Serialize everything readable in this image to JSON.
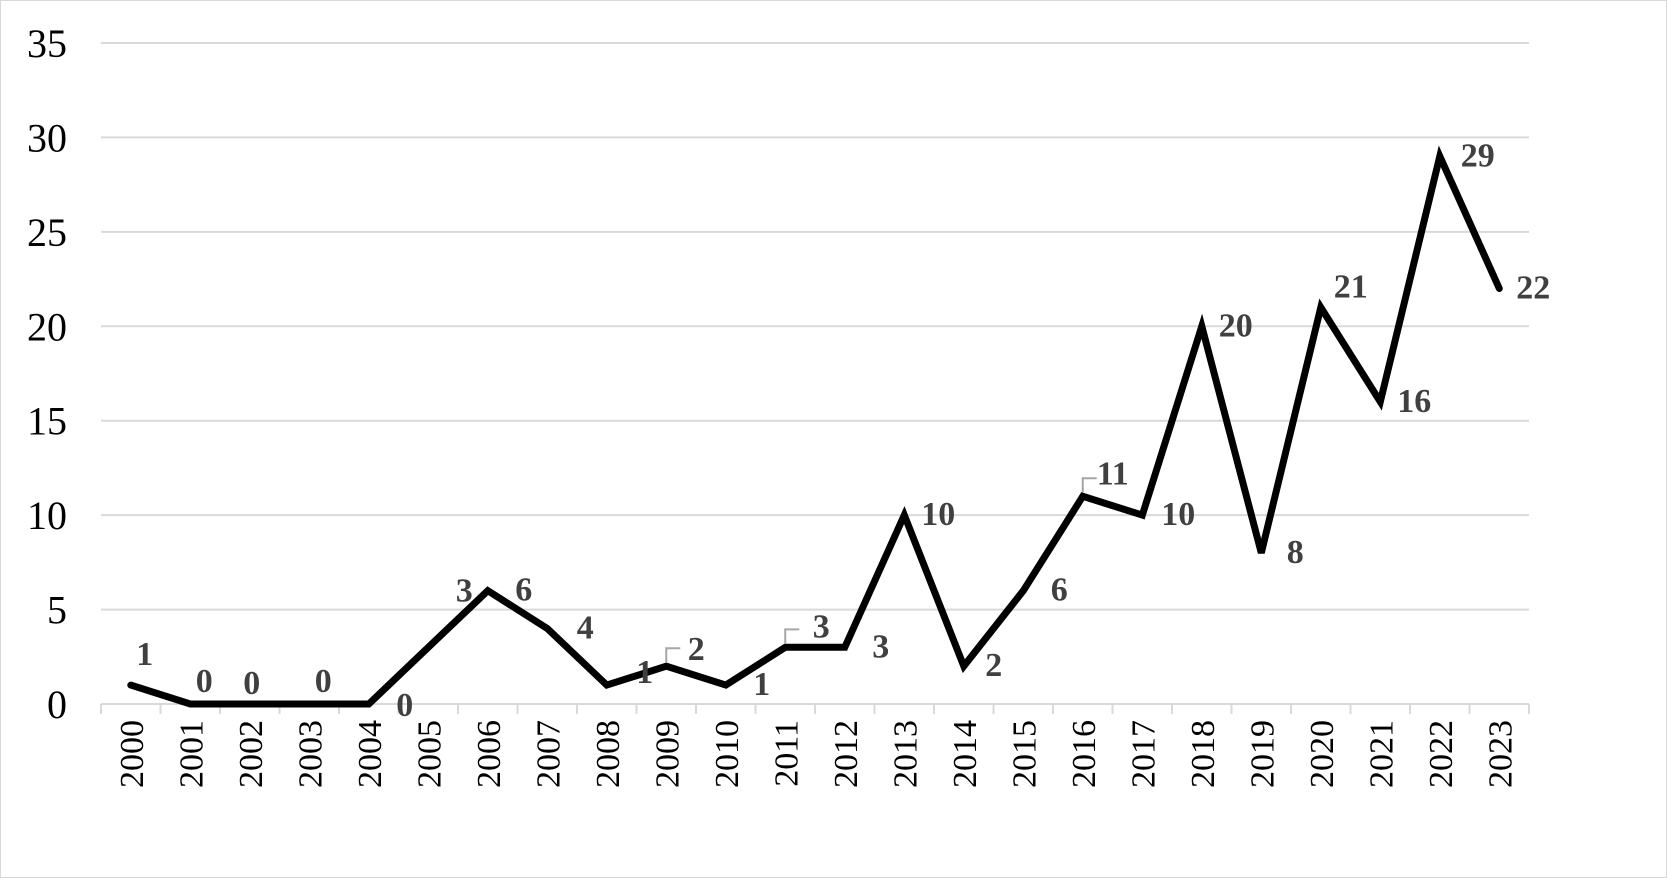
{
  "chart_data": {
    "type": "line",
    "title": "",
    "xlabel": "",
    "ylabel": "",
    "categories": [
      "2000",
      "2001",
      "2002",
      "2003",
      "2004",
      "2005",
      "2006",
      "2007",
      "2008",
      "2009",
      "2010",
      "2011",
      "2012",
      "2013",
      "2014",
      "2015",
      "2016",
      "2017",
      "2018",
      "2019",
      "2020",
      "2021",
      "2022",
      "2023"
    ],
    "values": [
      1,
      0,
      0,
      0,
      0,
      3,
      6,
      4,
      1,
      2,
      1,
      3,
      3,
      10,
      2,
      6,
      11,
      10,
      20,
      8,
      21,
      16,
      29,
      22
    ],
    "ylim": [
      0,
      35
    ],
    "yticks": [
      0,
      5,
      10,
      15,
      20,
      25,
      30,
      35
    ],
    "grid": true,
    "legend": "none",
    "line_color": "#000000",
    "label_color": "#404040",
    "grid_color": "#d9d9d9"
  }
}
